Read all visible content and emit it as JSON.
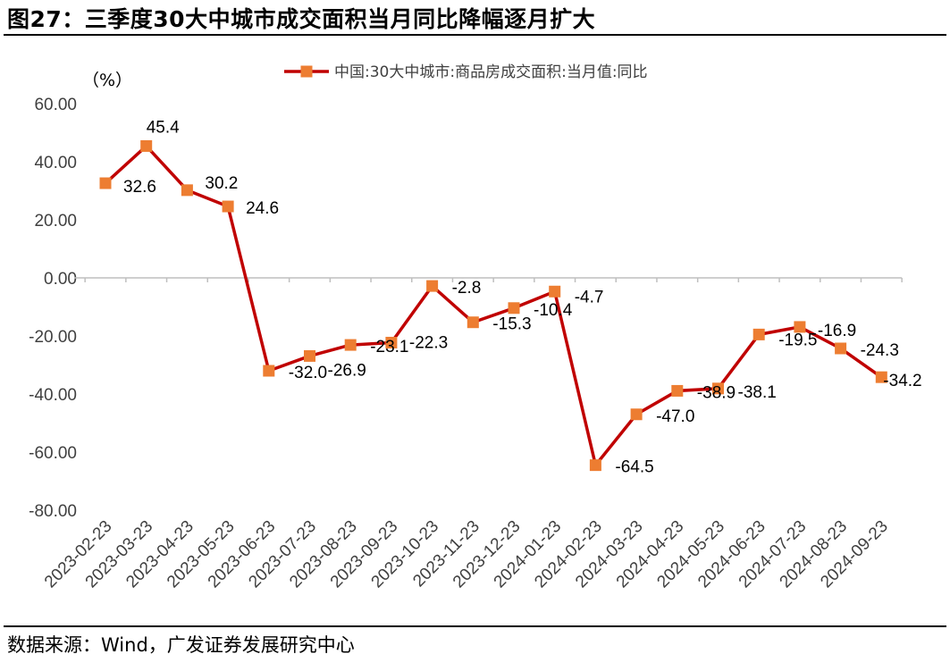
{
  "figure_title": "图27：三季度30大中城市成交面积当月同比降幅逐月扩大",
  "source": "数据来源：Wind，广发证券发展研究中心",
  "colors": {
    "line": "#C00000",
    "marker": "#ED7D31",
    "axis": "#BFBFBF"
  },
  "chart_data": {
    "type": "line",
    "unit_label": "（%）",
    "categories": [
      "2023-02-23",
      "2023-03-23",
      "2023-04-23",
      "2023-05-23",
      "2023-06-23",
      "2023-07-23",
      "2023-08-23",
      "2023-09-23",
      "2023-10-23",
      "2023-11-23",
      "2023-12-23",
      "2024-01-23",
      "2024-02-23",
      "2024-03-23",
      "2024-04-23",
      "2024-05-23",
      "2024-06-23",
      "2024-07-23",
      "2024-08-23",
      "2024-09-23"
    ],
    "series": [
      {
        "name": "中国:30大中城市:商品房成交面积:当月值:同比",
        "values": [
          32.6,
          45.4,
          30.2,
          24.6,
          -32.0,
          -26.9,
          -23.1,
          -22.3,
          -2.8,
          -15.3,
          -10.4,
          -4.7,
          -64.5,
          -47.0,
          -38.9,
          -38.1,
          -19.5,
          -16.9,
          -24.3,
          -34.2
        ]
      }
    ],
    "data_labels": [
      "32.6",
      "45.4",
      "30.2",
      "24.6",
      "-32.0",
      "-26.9",
      "-23.1",
      "-22.3",
      "-2.8",
      "-15.3",
      "-10.4",
      "-4.7",
      "-64.5",
      "-47.0",
      "-38.9",
      "-38.1",
      "-19.5",
      "-16.9",
      "-24.3",
      "-34.2"
    ],
    "y_ticks": [
      "60.00",
      "40.00",
      "20.00",
      "0.00",
      "-20.00",
      "-40.00",
      "-60.00",
      "-80.00"
    ],
    "ylim": [
      -80,
      60
    ],
    "legend": "top",
    "grid": false
  }
}
